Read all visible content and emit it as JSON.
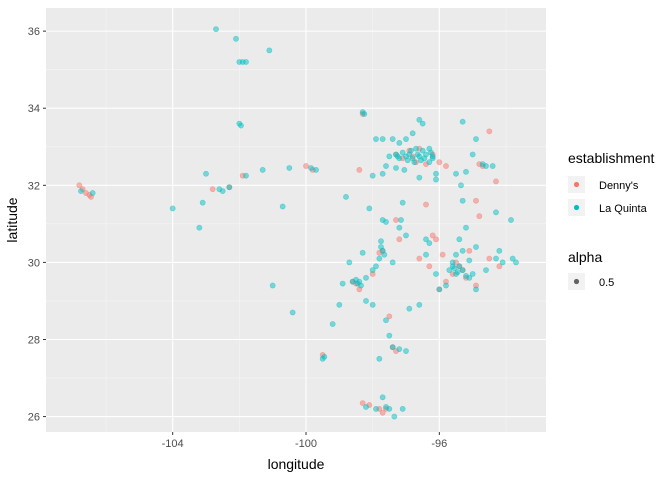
{
  "chart_data": {
    "type": "scatter",
    "xlabel": "longitude",
    "ylabel": "latitude",
    "xlim": [
      -107.8,
      -92.8
    ],
    "ylim": [
      25.6,
      36.6
    ],
    "x_ticks": [
      -104,
      -100,
      -96
    ],
    "x_tick_labels": [
      "-104",
      "-100",
      "-96"
    ],
    "y_ticks": [
      26,
      28,
      30,
      32,
      34,
      36
    ],
    "y_tick_labels": [
      "26",
      "28",
      "30",
      "32",
      "34",
      "36"
    ],
    "grid": true,
    "background": "#EBEBEB",
    "point_alpha": 0.5,
    "legend_position": "right",
    "legends": [
      {
        "title": "establishment",
        "entries": [
          {
            "label": "Denny's",
            "color": "#F8766D"
          },
          {
            "label": "La Quinta",
            "color": "#00BFC4"
          }
        ]
      },
      {
        "title": "alpha",
        "entries": [
          {
            "label": "0.5",
            "color": "#333333"
          }
        ]
      }
    ],
    "series": [
      {
        "name": "Denny's",
        "color": "#F8766D",
        "points": [
          [
            -106.8,
            32.0
          ],
          [
            -106.7,
            31.9
          ],
          [
            -106.6,
            31.8
          ],
          [
            -106.5,
            31.75
          ],
          [
            -106.45,
            31.7
          ],
          [
            -102.8,
            31.9
          ],
          [
            -102.3,
            31.95
          ],
          [
            -101.9,
            32.25
          ],
          [
            -100.0,
            32.5
          ],
          [
            -99.8,
            32.4
          ],
          [
            -98.4,
            32.4
          ],
          [
            -98.3,
            33.85
          ],
          [
            -97.3,
            32.8
          ],
          [
            -97.1,
            32.7
          ],
          [
            -96.9,
            32.9
          ],
          [
            -96.8,
            32.75
          ],
          [
            -96.7,
            32.6
          ],
          [
            -96.6,
            32.95
          ],
          [
            -96.4,
            32.55
          ],
          [
            -96.2,
            32.8
          ],
          [
            -96.0,
            32.6
          ],
          [
            -95.8,
            32.5
          ],
          [
            -94.8,
            32.55
          ],
          [
            -94.7,
            32.5
          ],
          [
            -94.5,
            33.4
          ],
          [
            -94.3,
            32.1
          ],
          [
            -94.9,
            31.6
          ],
          [
            -94.8,
            31.2
          ],
          [
            -96.4,
            31.5
          ],
          [
            -97.3,
            31.1
          ],
          [
            -97.2,
            30.6
          ],
          [
            -97.7,
            30.3
          ],
          [
            -97.8,
            30.25
          ],
          [
            -98.0,
            29.7
          ],
          [
            -98.5,
            29.45
          ],
          [
            -98.6,
            29.5
          ],
          [
            -98.4,
            29.3
          ],
          [
            -96.2,
            30.7
          ],
          [
            -96.1,
            30.6
          ],
          [
            -95.9,
            30.2
          ],
          [
            -95.5,
            30.0
          ],
          [
            -95.3,
            29.8
          ],
          [
            -95.2,
            29.6
          ],
          [
            -95.4,
            29.9
          ],
          [
            -95.6,
            29.7
          ],
          [
            -95.8,
            29.5
          ],
          [
            -96.0,
            29.3
          ],
          [
            -94.9,
            29.4
          ],
          [
            -94.5,
            30.1
          ],
          [
            -94.2,
            29.9
          ],
          [
            -97.5,
            28.6
          ],
          [
            -97.4,
            27.8
          ],
          [
            -97.3,
            27.7
          ],
          [
            -97.6,
            26.2
          ],
          [
            -97.8,
            26.2
          ],
          [
            -98.1,
            26.3
          ],
          [
            -98.3,
            26.35
          ],
          [
            -97.7,
            26.1
          ],
          [
            -99.5,
            27.6
          ],
          [
            -95.1,
            30.3
          ],
          [
            -96.6,
            30.1
          ],
          [
            -96.3,
            29.9
          ]
        ]
      },
      {
        "name": "La Quinta",
        "color": "#00BFC4",
        "points": [
          [
            -106.75,
            31.85
          ],
          [
            -106.4,
            31.8
          ],
          [
            -102.7,
            36.05
          ],
          [
            -102.1,
            35.8
          ],
          [
            -101.1,
            35.5
          ],
          [
            -102.0,
            35.2
          ],
          [
            -101.9,
            35.2
          ],
          [
            -101.8,
            35.2
          ],
          [
            -102.0,
            33.6
          ],
          [
            -101.95,
            33.55
          ],
          [
            -103.0,
            32.3
          ],
          [
            -102.3,
            31.95
          ],
          [
            -102.5,
            31.85
          ],
          [
            -101.8,
            32.25
          ],
          [
            -101.3,
            32.4
          ],
          [
            -100.7,
            31.45
          ],
          [
            -100.5,
            32.45
          ],
          [
            -99.85,
            32.45
          ],
          [
            -99.7,
            32.4
          ],
          [
            -104.0,
            31.4
          ],
          [
            -103.2,
            30.9
          ],
          [
            -103.1,
            31.55
          ],
          [
            -102.6,
            31.9
          ],
          [
            -101.0,
            29.4
          ],
          [
            -100.4,
            28.7
          ],
          [
            -99.5,
            27.5
          ],
          [
            -99.45,
            27.55
          ],
          [
            -98.3,
            33.9
          ],
          [
            -98.25,
            33.85
          ],
          [
            -97.9,
            33.2
          ],
          [
            -97.7,
            33.2
          ],
          [
            -97.4,
            33.2
          ],
          [
            -97.2,
            33.1
          ],
          [
            -97.0,
            33.2
          ],
          [
            -96.8,
            33.35
          ],
          [
            -96.6,
            33.7
          ],
          [
            -96.5,
            33.6
          ],
          [
            -97.3,
            32.8
          ],
          [
            -97.25,
            32.75
          ],
          [
            -97.2,
            32.7
          ],
          [
            -97.1,
            32.85
          ],
          [
            -97.0,
            32.75
          ],
          [
            -96.95,
            32.65
          ],
          [
            -96.9,
            32.8
          ],
          [
            -96.85,
            32.9
          ],
          [
            -96.8,
            32.7
          ],
          [
            -96.75,
            32.6
          ],
          [
            -96.7,
            32.95
          ],
          [
            -96.65,
            32.8
          ],
          [
            -96.6,
            32.75
          ],
          [
            -96.55,
            32.65
          ],
          [
            -96.5,
            32.9
          ],
          [
            -96.45,
            32.7
          ],
          [
            -96.4,
            32.8
          ],
          [
            -96.3,
            32.6
          ],
          [
            -96.25,
            32.85
          ],
          [
            -96.2,
            32.7
          ],
          [
            -97.5,
            32.75
          ],
          [
            -97.6,
            32.5
          ],
          [
            -97.7,
            32.3
          ],
          [
            -97.3,
            32.45
          ],
          [
            -97.05,
            32.4
          ],
          [
            -96.1,
            32.3
          ],
          [
            -95.3,
            33.65
          ],
          [
            -95.2,
            32.35
          ],
          [
            -94.7,
            32.55
          ],
          [
            -94.6,
            32.5
          ],
          [
            -94.4,
            32.5
          ],
          [
            -95.0,
            32.8
          ],
          [
            -94.9,
            33.2
          ],
          [
            -95.5,
            32.3
          ],
          [
            -96.1,
            32.15
          ],
          [
            -96.6,
            32.2
          ],
          [
            -98.0,
            32.25
          ],
          [
            -98.8,
            31.7
          ],
          [
            -97.7,
            31.1
          ],
          [
            -97.6,
            31.05
          ],
          [
            -97.2,
            30.9
          ],
          [
            -97.0,
            30.7
          ],
          [
            -97.4,
            30.0
          ],
          [
            -97.75,
            30.4
          ],
          [
            -97.7,
            30.3
          ],
          [
            -97.65,
            30.2
          ],
          [
            -97.8,
            30.1
          ],
          [
            -98.3,
            30.25
          ],
          [
            -98.7,
            30.0
          ],
          [
            -98.5,
            29.55
          ],
          [
            -98.45,
            29.45
          ],
          [
            -98.4,
            29.5
          ],
          [
            -98.35,
            29.4
          ],
          [
            -98.6,
            29.5
          ],
          [
            -98.2,
            29.6
          ],
          [
            -98.0,
            29.8
          ],
          [
            -97.9,
            29.9
          ],
          [
            -98.9,
            29.45
          ],
          [
            -99.0,
            28.9
          ],
          [
            -99.2,
            28.4
          ],
          [
            -98.2,
            29.0
          ],
          [
            -98.0,
            28.9
          ],
          [
            -97.6,
            28.5
          ],
          [
            -97.5,
            28.1
          ],
          [
            -97.4,
            27.8
          ],
          [
            -97.2,
            27.75
          ],
          [
            -97.0,
            27.7
          ],
          [
            -97.8,
            27.5
          ],
          [
            -96.9,
            28.8
          ],
          [
            -96.6,
            28.9
          ],
          [
            -96.0,
            29.3
          ],
          [
            -95.3,
            29.8
          ],
          [
            -95.4,
            29.9
          ],
          [
            -95.45,
            29.75
          ],
          [
            -95.5,
            29.7
          ],
          [
            -95.55,
            29.85
          ],
          [
            -95.6,
            29.9
          ],
          [
            -95.7,
            29.8
          ],
          [
            -95.2,
            29.65
          ],
          [
            -95.1,
            29.6
          ],
          [
            -95.0,
            29.7
          ],
          [
            -94.9,
            29.3
          ],
          [
            -94.6,
            29.8
          ],
          [
            -94.3,
            30.1
          ],
          [
            -94.1,
            30.0
          ],
          [
            -93.8,
            30.1
          ],
          [
            -93.7,
            30.0
          ],
          [
            -95.3,
            30.3
          ],
          [
            -95.5,
            30.2
          ],
          [
            -95.4,
            30.6
          ],
          [
            -95.2,
            30.9
          ],
          [
            -96.4,
            30.6
          ],
          [
            -96.3,
            30.5
          ],
          [
            -96.4,
            30.2
          ],
          [
            -96.1,
            29.7
          ],
          [
            -95.8,
            29.4
          ],
          [
            -95.6,
            30.0
          ],
          [
            -97.6,
            26.25
          ],
          [
            -97.5,
            26.2
          ],
          [
            -97.9,
            26.2
          ],
          [
            -98.2,
            26.25
          ],
          [
            -97.35,
            26.0
          ],
          [
            -97.7,
            26.5
          ],
          [
            -97.1,
            26.2
          ],
          [
            -93.85,
            31.1
          ],
          [
            -94.2,
            30.3
          ],
          [
            -94.9,
            30.4
          ],
          [
            -96.2,
            32.75
          ],
          [
            -96.3,
            32.95
          ],
          [
            -95.35,
            32.0
          ],
          [
            -95.3,
            31.6
          ],
          [
            -94.3,
            31.3
          ],
          [
            -95.1,
            30.05
          ],
          [
            -97.75,
            30.55
          ],
          [
            -98.1,
            31.4
          ],
          [
            -97.1,
            31.55
          ],
          [
            -97.15,
            31.1
          ]
        ]
      }
    ]
  }
}
